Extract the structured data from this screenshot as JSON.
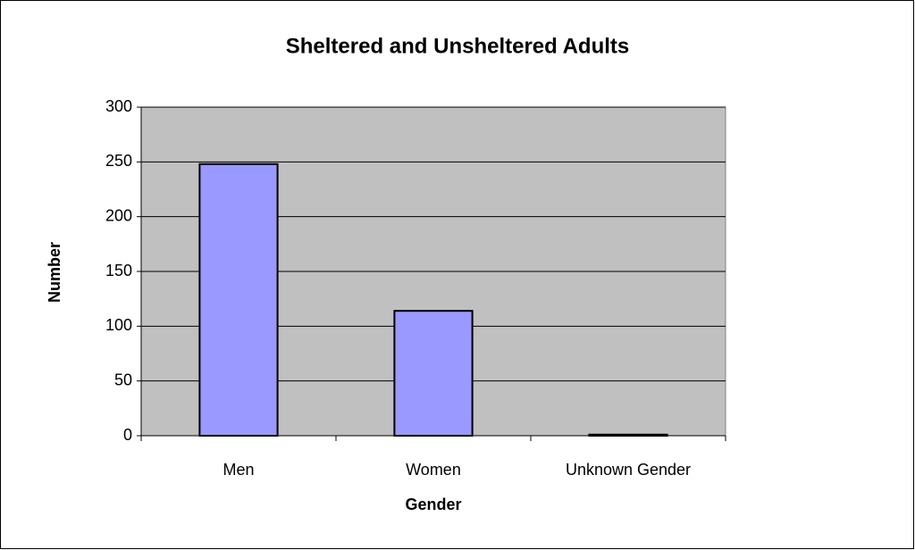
{
  "chart_data": {
    "type": "bar",
    "title": "Sheltered and Unsheltered Adults",
    "x_label": "Gender",
    "y_label": "Number",
    "categories": [
      "Men",
      "Women",
      "Unknown Gender"
    ],
    "values": [
      248,
      114,
      1
    ],
    "color": "#9999ff",
    "ylim": [
      0,
      300
    ],
    "yticks": [
      0,
      50,
      100,
      150,
      200,
      250,
      300
    ],
    "grid": true
  }
}
